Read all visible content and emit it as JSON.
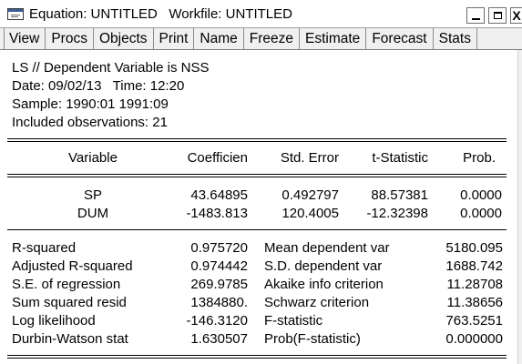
{
  "window": {
    "title": "Equation: UNTITLED   Workfile: UNTITLED",
    "minimize_icon": "minimize-icon",
    "maximize_icon": "maximize-icon",
    "close_label": "X"
  },
  "toolbar": {
    "buttons": [
      "View",
      "Procs",
      "Objects",
      "Print",
      "Name",
      "Freeze",
      "Estimate",
      "Forecast",
      "Stats"
    ]
  },
  "header": {
    "line1": "LS // Dependent Variable is NSS",
    "line2": "Date: 09/02/13   Time: 12:20",
    "line3": "Sample: 1990:01 1991:09",
    "line4": "Included observations: 21"
  },
  "coef_table": {
    "columns": [
      "Variable",
      "Coefficien",
      "Std. Error",
      "t-Statistic",
      "Prob."
    ],
    "rows": [
      [
        "SP",
        "43.64895",
        "0.492797",
        "88.57381",
        "0.0000"
      ],
      [
        "DUM",
        "-1483.813",
        "120.4005",
        "-12.32398",
        "0.0000"
      ]
    ]
  },
  "stats": [
    [
      "R-squared",
      "0.975720",
      "Mean dependent var",
      "5180.095"
    ],
    [
      "Adjusted R-squared",
      "0.974442",
      "S.D. dependent var",
      "1688.742"
    ],
    [
      "S.E. of regression",
      "269.9785",
      "Akaike info criterion",
      "11.28708"
    ],
    [
      "Sum squared resid",
      "1384880.",
      "Schwarz criterion",
      "11.38656"
    ],
    [
      "Log likelihood",
      "-146.3120",
      "F-statistic",
      "763.5251"
    ],
    [
      "Durbin-Watson stat",
      "1.630507",
      "Prob(F-statistic)",
      "0.000000"
    ]
  ]
}
